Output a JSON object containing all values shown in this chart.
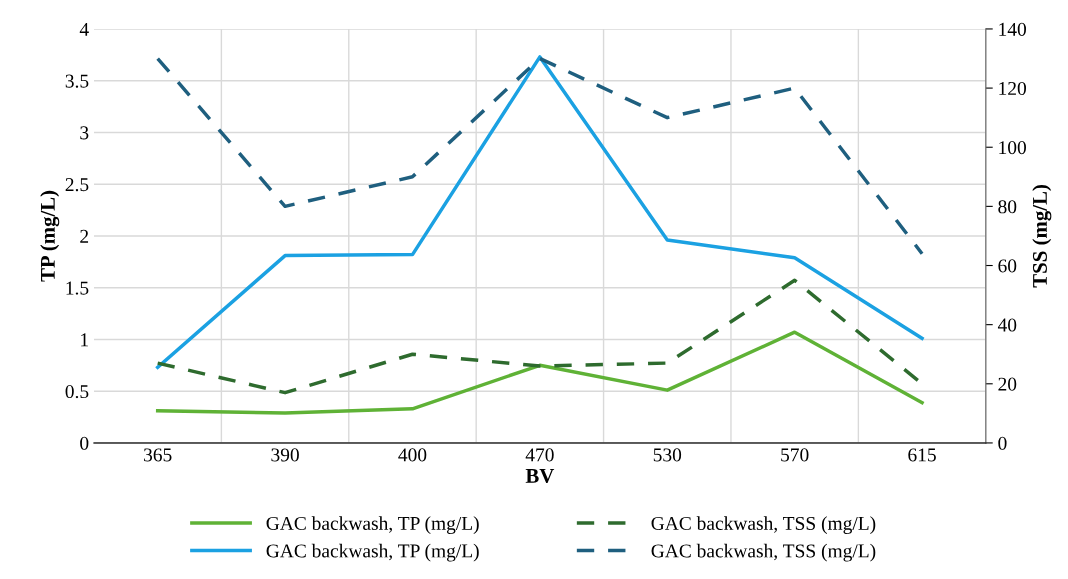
{
  "chart_data": {
    "type": "line",
    "xlabel": "BV",
    "ylabel": "TP (mg/L)",
    "y2label": "TSS (mg/L)",
    "categories": [
      "365",
      "390",
      "400",
      "470",
      "530",
      "570",
      "615"
    ],
    "series": [
      {
        "name": "GAC backwash, TP (mg/L)",
        "color": "#5fb236",
        "line_style": "solid",
        "values": [
          0.31,
          0.29,
          0.33,
          0.75,
          0.51,
          1.07,
          0.39
        ]
      },
      {
        "name": "GAC backwash, TP (mg/L)",
        "color": "#1ba1e2",
        "line_style": "solid",
        "values": [
          0.73,
          1.81,
          1.82,
          3.73,
          1.96,
          1.79,
          1.01
        ]
      },
      {
        "name": "GAC backwash, TSS (mg/L)",
        "color": "#2e6b2e",
        "line_style": "dashed",
        "axis": "y2",
        "values": [
          27,
          17,
          30,
          26,
          27,
          55,
          20
        ]
      },
      {
        "name": "GAC backwash, TSS (mg/L)",
        "color": "#1f5f7f",
        "line_style": "dashed",
        "axis": "y2",
        "values": [
          130,
          80,
          90,
          130,
          110,
          120,
          64
        ]
      }
    ],
    "ylim": [
      0,
      4
    ],
    "yticks": [
      0,
      0.5,
      1,
      1.5,
      2,
      2.5,
      3,
      3.5,
      4
    ],
    "y2lim": [
      0,
      140
    ],
    "y2ticks": [
      0,
      20,
      40,
      60,
      80,
      100,
      120,
      140
    ],
    "grid": true,
    "legend": "bottom",
    "marker": "none"
  }
}
